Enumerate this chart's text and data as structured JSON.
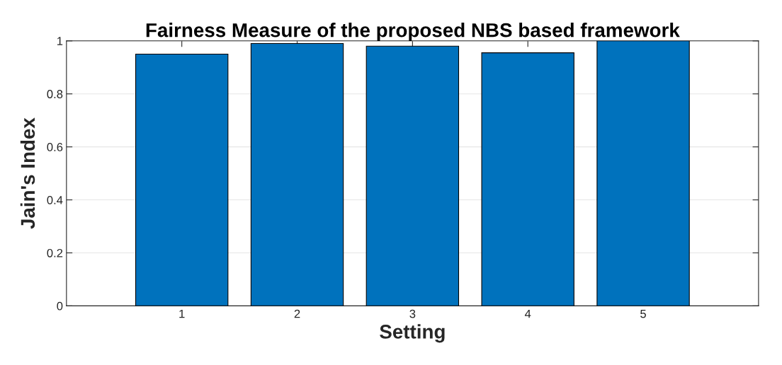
{
  "chart_data": {
    "type": "bar",
    "title": "Fairness Measure of the proposed NBS based framework",
    "xlabel": "Setting",
    "ylabel": "Jain's Index",
    "x": [
      1,
      2,
      3,
      4,
      5
    ],
    "values": [
      0.95,
      0.99,
      0.98,
      0.955,
      1.0
    ],
    "color": "#0072bd",
    "xlim": [
      0,
      6
    ],
    "xticks": [
      1,
      2,
      3,
      4,
      5
    ],
    "ylim": [
      0,
      1
    ],
    "yticks": [
      0,
      0.2,
      0.4,
      0.6,
      0.8,
      1
    ],
    "grid": "y"
  }
}
